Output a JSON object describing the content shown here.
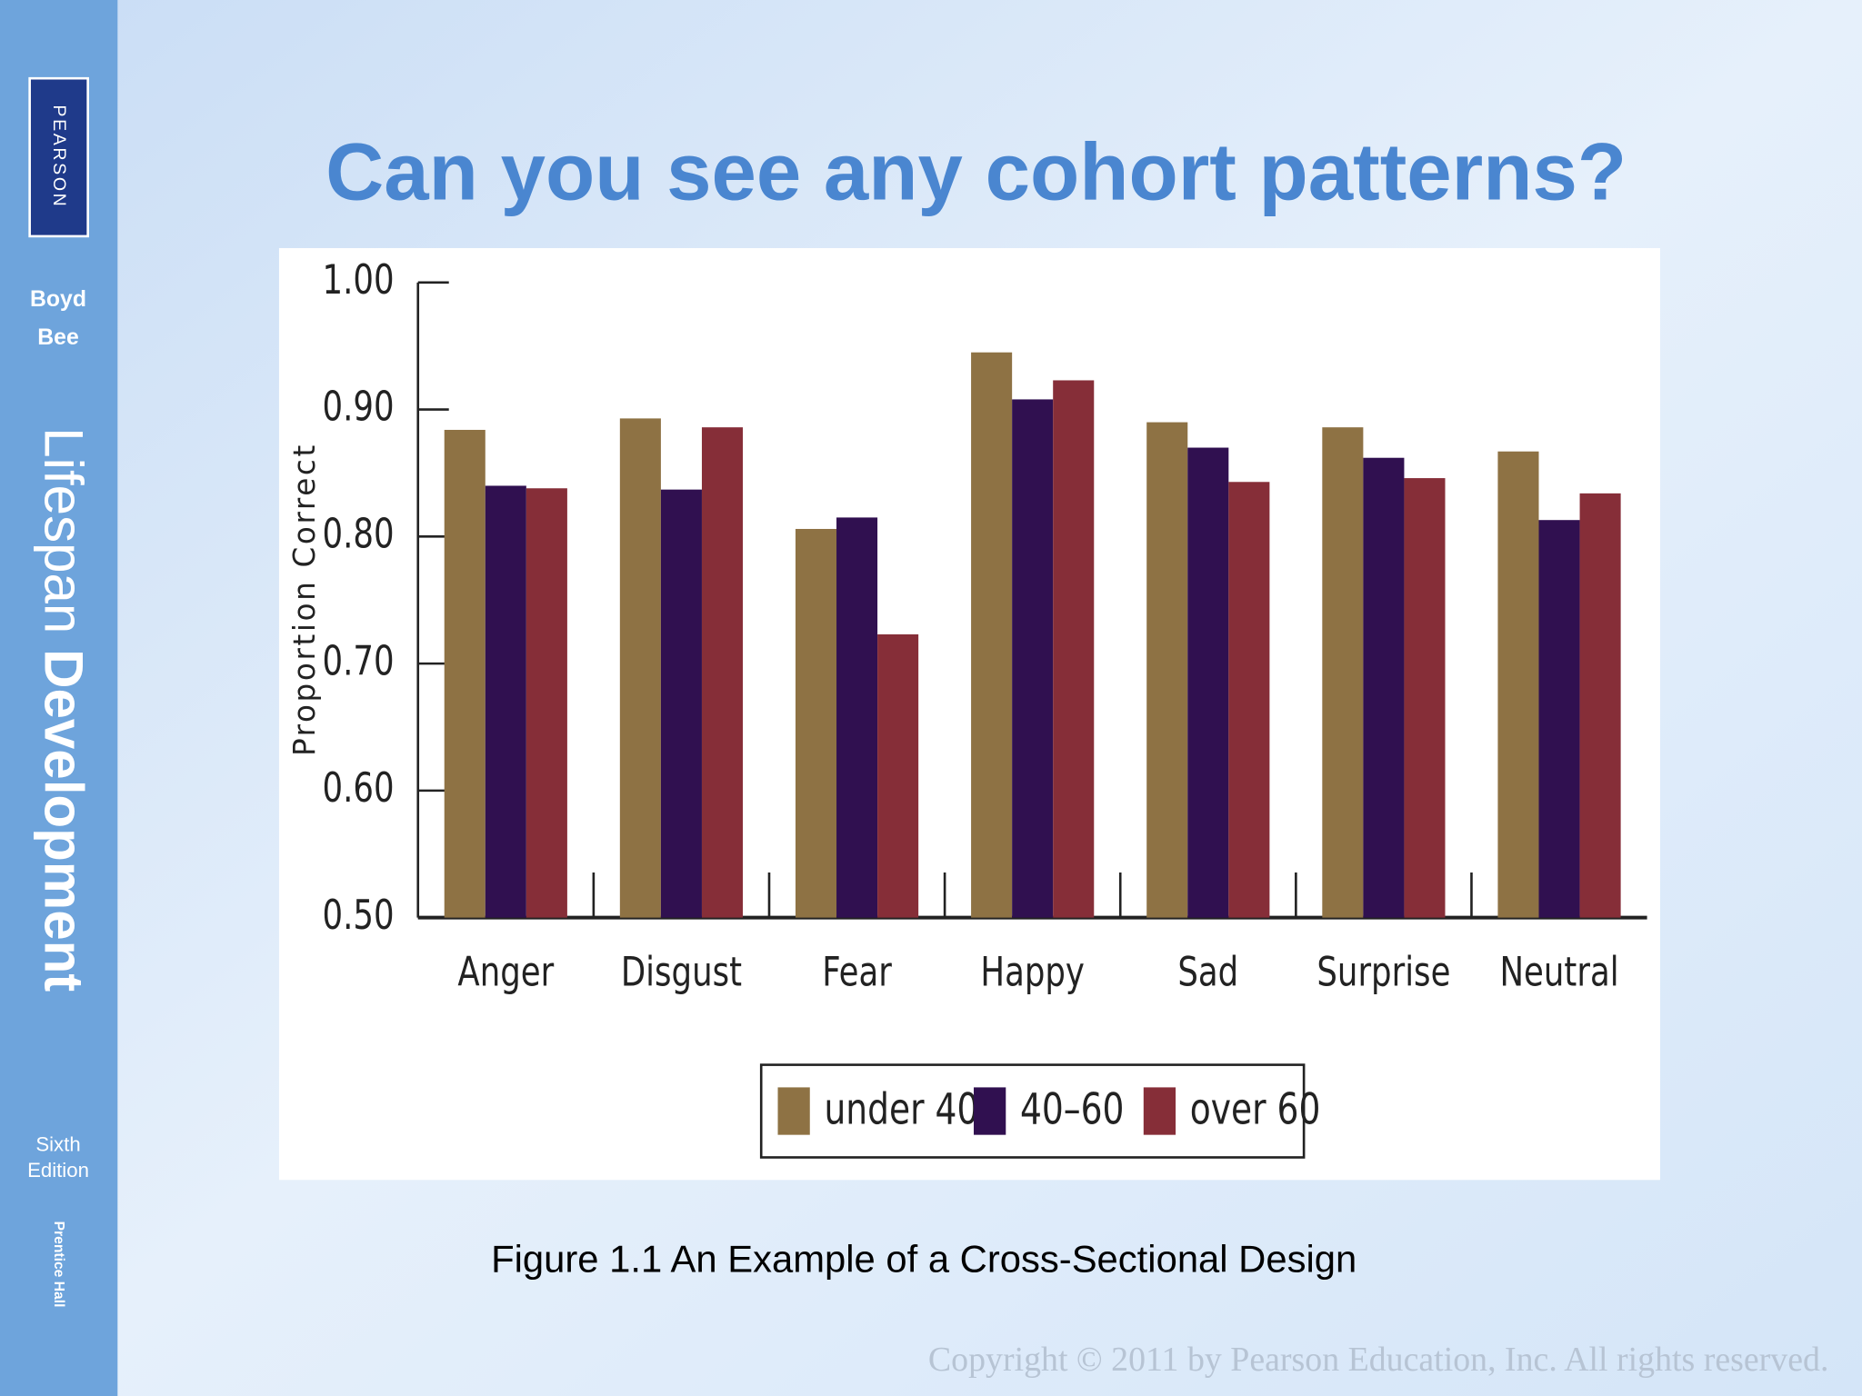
{
  "sidebar": {
    "publisher": "PEARSON",
    "authors": [
      "Boyd",
      "Bee"
    ],
    "book_title": [
      "Lifespan",
      "Development"
    ],
    "edition": [
      "Sixth",
      "Edition"
    ],
    "imprint": "Prentice Hall"
  },
  "slide": {
    "title": "Can you see any cohort patterns?",
    "caption": "Figure 1.1 An Example of a Cross-Sectional Design",
    "copyright": "Copyright © 2011 by Pearson Education, Inc. All rights reserved."
  },
  "chart_data": {
    "type": "bar",
    "y_label": "Proportion Correct",
    "categories": [
      "Anger",
      "Disgust",
      "Fear",
      "Happy",
      "Sad",
      "Surprise",
      "Neutral"
    ],
    "series": [
      {
        "name": "under 40",
        "color": "#8e7244",
        "values": [
          0.884,
          0.893,
          0.806,
          0.945,
          0.89,
          0.886,
          0.867
        ]
      },
      {
        "name": "40–60",
        "color": "#301050",
        "values": [
          0.84,
          0.837,
          0.815,
          0.908,
          0.87,
          0.862,
          0.813
        ]
      },
      {
        "name": "over 60",
        "color": "#862e38",
        "values": [
          0.838,
          0.886,
          0.723,
          0.923,
          0.843,
          0.846,
          0.834
        ]
      }
    ],
    "ylim": [
      0.5,
      1.0
    ],
    "yticks": [
      {
        "value": 0.5,
        "label": "0.50"
      },
      {
        "value": 0.6,
        "label": "0.60"
      },
      {
        "value": 0.7,
        "label": "0.70"
      },
      {
        "value": 0.8,
        "label": "0.80"
      },
      {
        "value": 0.9,
        "label": "0.90"
      },
      {
        "value": 1.0,
        "label": "1.00"
      }
    ],
    "legend": "bottom"
  }
}
